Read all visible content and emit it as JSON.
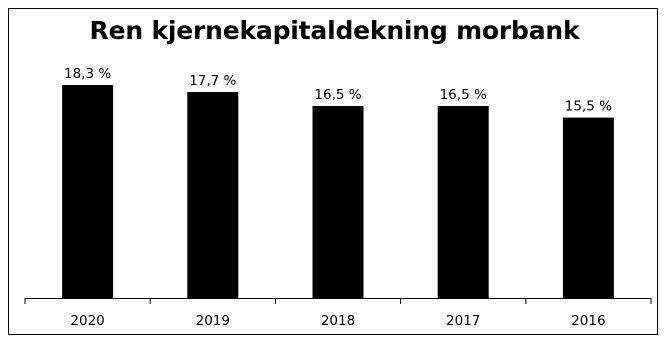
{
  "chart_data": {
    "type": "bar",
    "title": "Ren kjernekapitaldekning morbank",
    "categories": [
      "2020",
      "2019",
      "2018",
      "2017",
      "2016"
    ],
    "values": [
      18.3,
      17.7,
      16.5,
      16.5,
      15.5
    ],
    "data_labels": [
      "18,3 %",
      "17,7 %",
      "16,5 %",
      "16,5 %",
      "15,5 %"
    ],
    "xlabel": "",
    "ylabel": "",
    "ylim": [
      0,
      22
    ],
    "grid": false,
    "legend": "none",
    "bar_color": "#000000"
  }
}
